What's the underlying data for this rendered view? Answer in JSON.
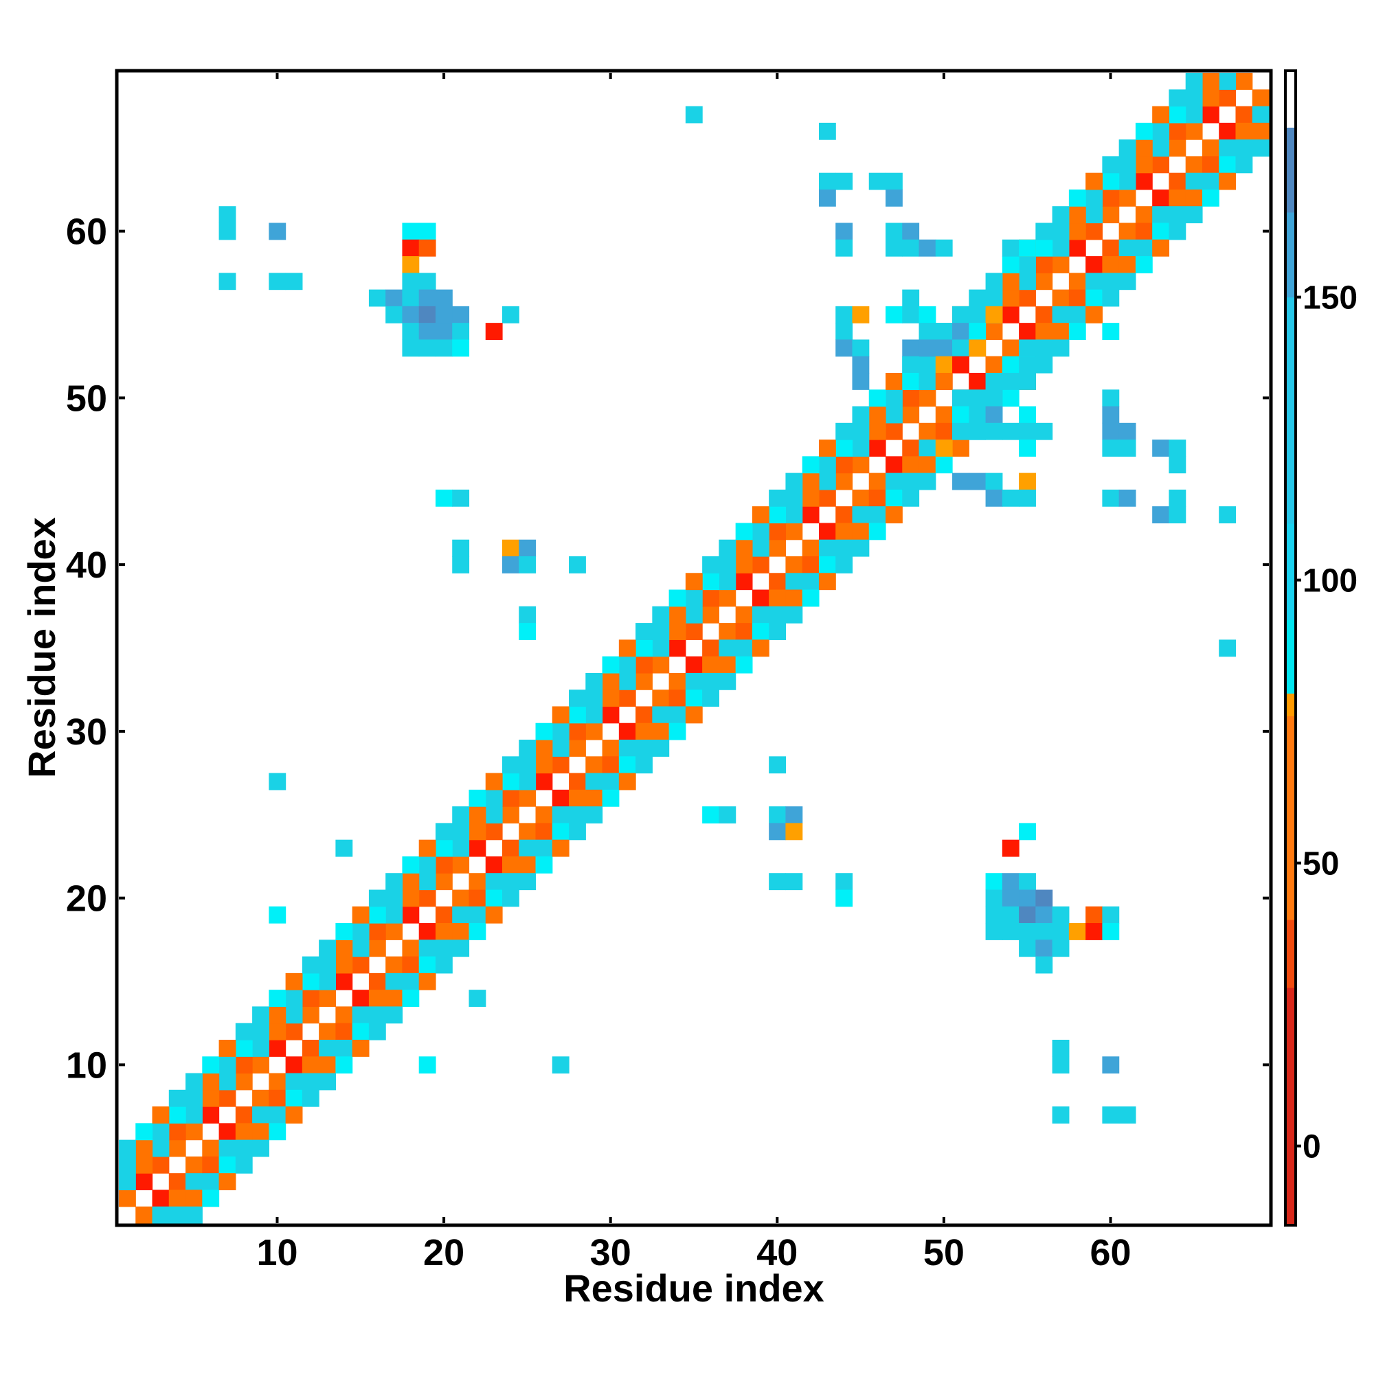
{
  "chart_data": {
    "type": "heatmap",
    "title": "",
    "xlabel": "Residue index",
    "ylabel": "Residue index",
    "xlim": [
      1,
      69
    ],
    "ylim": [
      1,
      69
    ],
    "x_ticks": [
      10,
      20,
      30,
      40,
      50,
      60
    ],
    "y_ticks": [
      10,
      20,
      30,
      40,
      50,
      60
    ],
    "x_tick_labels": [
      "10",
      "20",
      "30",
      "40",
      "50",
      "60"
    ],
    "y_tick_labels": [
      "10",
      "20",
      "30",
      "40",
      "50",
      "60"
    ],
    "colorbar": {
      "range": [
        -14,
        190
      ],
      "ticks": [
        0,
        50,
        100,
        150
      ],
      "tick_labels": [
        "0",
        "50",
        "100",
        "150"
      ],
      "bands": [
        {
          "from": -14,
          "to": 28,
          "color": "#d8281a"
        },
        {
          "from": 28,
          "to": 40,
          "color": "#f04b0f"
        },
        {
          "from": 40,
          "to": 76,
          "color": "#ff7a10"
        },
        {
          "from": 76,
          "to": 80,
          "color": "#ff9a00"
        },
        {
          "from": 80,
          "to": 93,
          "color": "#00e6f0"
        },
        {
          "from": 93,
          "to": 110,
          "color": "#1ad2f0"
        },
        {
          "from": 110,
          "to": 150,
          "color": "#26c6e8"
        },
        {
          "from": 150,
          "to": 165,
          "color": "#3fa4d8"
        },
        {
          "from": 165,
          "to": 180,
          "color": "#4f87c0"
        },
        {
          "from": 180,
          "to": 190,
          "color": "#ffffff"
        }
      ]
    },
    "palette": {
      "red": "#ff1a00",
      "orange_red": "#ff5a00",
      "orange": "#ff7300",
      "amber": "#ffa000",
      "cyan": "#00f0f8",
      "sky": "#1ad2e6",
      "blue": "#3fa4d8",
      "steel": "#4f87c0"
    },
    "diagonal_profile": [
      {
        "d": 1,
        "start": 1,
        "end": 68,
        "pattern": [
          "orange_red",
          "orange",
          "orange",
          "red"
        ]
      },
      {
        "d": 2,
        "start": 1,
        "end": 67,
        "pattern": [
          "orange",
          "sky",
          "orange_red",
          "sky"
        ]
      },
      {
        "d": 3,
        "start": 1,
        "end": 66,
        "pattern": [
          "sky",
          "orange",
          "sky",
          "cyan"
        ]
      },
      {
        "d": 4,
        "start": 1,
        "end": 65,
        "pattern": [
          "sky",
          "sky",
          "cyan",
          "orange"
        ]
      }
    ],
    "cells": [
      {
        "x": 18,
        "y": 60,
        "c": "cyan"
      },
      {
        "x": 19,
        "y": 60,
        "c": "cyan"
      },
      {
        "x": 18,
        "y": 59,
        "c": "red"
      },
      {
        "x": 19,
        "y": 59,
        "c": "orange_red"
      },
      {
        "x": 18,
        "y": 58,
        "c": "amber"
      },
      {
        "x": 18,
        "y": 57,
        "c": "sky"
      },
      {
        "x": 19,
        "y": 57,
        "c": "sky"
      },
      {
        "x": 16,
        "y": 56,
        "c": "sky"
      },
      {
        "x": 17,
        "y": 56,
        "c": "blue"
      },
      {
        "x": 18,
        "y": 56,
        "c": "sky"
      },
      {
        "x": 19,
        "y": 56,
        "c": "blue"
      },
      {
        "x": 20,
        "y": 56,
        "c": "blue"
      },
      {
        "x": 17,
        "y": 55,
        "c": "sky"
      },
      {
        "x": 18,
        "y": 55,
        "c": "blue"
      },
      {
        "x": 19,
        "y": 55,
        "c": "steel"
      },
      {
        "x": 20,
        "y": 55,
        "c": "blue"
      },
      {
        "x": 21,
        "y": 55,
        "c": "blue"
      },
      {
        "x": 18,
        "y": 54,
        "c": "sky"
      },
      {
        "x": 19,
        "y": 54,
        "c": "blue"
      },
      {
        "x": 20,
        "y": 54,
        "c": "blue"
      },
      {
        "x": 21,
        "y": 54,
        "c": "sky"
      },
      {
        "x": 18,
        "y": 53,
        "c": "sky"
      },
      {
        "x": 19,
        "y": 53,
        "c": "sky"
      },
      {
        "x": 20,
        "y": 53,
        "c": "sky"
      },
      {
        "x": 21,
        "y": 53,
        "c": "cyan"
      },
      {
        "x": 7,
        "y": 61,
        "c": "sky"
      },
      {
        "x": 7,
        "y": 60,
        "c": "sky"
      },
      {
        "x": 10,
        "y": 60,
        "c": "blue"
      },
      {
        "x": 7,
        "y": 57,
        "c": "sky"
      },
      {
        "x": 10,
        "y": 57,
        "c": "sky"
      },
      {
        "x": 11,
        "y": 57,
        "c": "sky"
      },
      {
        "x": 24,
        "y": 55,
        "c": "sky"
      },
      {
        "x": 23,
        "y": 54,
        "c": "red"
      },
      {
        "x": 35,
        "y": 67,
        "c": "sky"
      },
      {
        "x": 43,
        "y": 66,
        "c": "sky"
      },
      {
        "x": 43,
        "y": 63,
        "c": "sky"
      },
      {
        "x": 44,
        "y": 63,
        "c": "sky"
      },
      {
        "x": 43,
        "y": 62,
        "c": "blue"
      },
      {
        "x": 46,
        "y": 63,
        "c": "sky"
      },
      {
        "x": 47,
        "y": 63,
        "c": "sky"
      },
      {
        "x": 47,
        "y": 62,
        "c": "blue"
      },
      {
        "x": 44,
        "y": 60,
        "c": "blue"
      },
      {
        "x": 44,
        "y": 59,
        "c": "sky"
      },
      {
        "x": 47,
        "y": 60,
        "c": "sky"
      },
      {
        "x": 48,
        "y": 60,
        "c": "blue"
      },
      {
        "x": 47,
        "y": 59,
        "c": "sky"
      },
      {
        "x": 48,
        "y": 59,
        "c": "sky"
      },
      {
        "x": 49,
        "y": 59,
        "c": "blue"
      },
      {
        "x": 50,
        "y": 59,
        "c": "sky"
      },
      {
        "x": 54,
        "y": 59,
        "c": "sky"
      },
      {
        "x": 55,
        "y": 59,
        "c": "cyan"
      },
      {
        "x": 48,
        "y": 56,
        "c": "sky"
      },
      {
        "x": 44,
        "y": 55,
        "c": "sky"
      },
      {
        "x": 45,
        "y": 55,
        "c": "amber"
      },
      {
        "x": 47,
        "y": 55,
        "c": "cyan"
      },
      {
        "x": 48,
        "y": 55,
        "c": "sky"
      },
      {
        "x": 49,
        "y": 55,
        "c": "cyan"
      },
      {
        "x": 44,
        "y": 54,
        "c": "sky"
      },
      {
        "x": 49,
        "y": 54,
        "c": "sky"
      },
      {
        "x": 44,
        "y": 53,
        "c": "blue"
      },
      {
        "x": 45,
        "y": 53,
        "c": "sky"
      },
      {
        "x": 48,
        "y": 53,
        "c": "blue"
      },
      {
        "x": 49,
        "y": 53,
        "c": "blue"
      },
      {
        "x": 45,
        "y": 52,
        "c": "blue"
      },
      {
        "x": 48,
        "y": 52,
        "c": "sky"
      },
      {
        "x": 45,
        "y": 51,
        "c": "blue"
      },
      {
        "x": 48,
        "y": 51,
        "c": "cyan"
      },
      {
        "x": 49,
        "y": 51,
        "c": "sky"
      },
      {
        "x": 51,
        "y": 55,
        "c": "sky"
      },
      {
        "x": 52,
        "y": 55,
        "c": "sky"
      },
      {
        "x": 53,
        "y": 55,
        "c": "amber"
      },
      {
        "x": 50,
        "y": 54,
        "c": "sky"
      },
      {
        "x": 51,
        "y": 54,
        "c": "blue"
      },
      {
        "x": 52,
        "y": 54,
        "c": "cyan"
      },
      {
        "x": 50,
        "y": 53,
        "c": "blue"
      },
      {
        "x": 51,
        "y": 53,
        "c": "sky"
      },
      {
        "x": 52,
        "y": 53,
        "c": "amber"
      },
      {
        "x": 50,
        "y": 52,
        "c": "amber"
      },
      {
        "x": 51,
        "y": 52,
        "c": "red"
      },
      {
        "x": 53,
        "y": 52,
        "c": "orange"
      },
      {
        "x": 54,
        "y": 52,
        "c": "cyan"
      },
      {
        "x": 55,
        "y": 52,
        "c": "sky"
      },
      {
        "x": 50,
        "y": 51,
        "c": "orange"
      },
      {
        "x": 52,
        "y": 51,
        "c": "red"
      },
      {
        "x": 53,
        "y": 51,
        "c": "sky"
      },
      {
        "x": 54,
        "y": 51,
        "c": "sky"
      },
      {
        "x": 55,
        "y": 51,
        "c": "sky"
      },
      {
        "x": 51,
        "y": 50,
        "c": "sky"
      },
      {
        "x": 52,
        "y": 50,
        "c": "sky"
      },
      {
        "x": 53,
        "y": 50,
        "c": "sky"
      },
      {
        "x": 51,
        "y": 49,
        "c": "cyan"
      },
      {
        "x": 52,
        "y": 49,
        "c": "sky"
      },
      {
        "x": 53,
        "y": 49,
        "c": "blue"
      },
      {
        "x": 55,
        "y": 49,
        "c": "cyan"
      },
      {
        "x": 51,
        "y": 48,
        "c": "sky"
      },
      {
        "x": 52,
        "y": 48,
        "c": "sky"
      },
      {
        "x": 53,
        "y": 48,
        "c": "sky"
      },
      {
        "x": 54,
        "y": 48,
        "c": "sky"
      },
      {
        "x": 55,
        "y": 48,
        "c": "sky"
      },
      {
        "x": 56,
        "y": 48,
        "c": "sky"
      },
      {
        "x": 50,
        "y": 47,
        "c": "amber"
      },
      {
        "x": 55,
        "y": 47,
        "c": "cyan"
      },
      {
        "x": 51,
        "y": 45,
        "c": "blue"
      },
      {
        "x": 52,
        "y": 45,
        "c": "blue"
      },
      {
        "x": 53,
        "y": 45,
        "c": "sky"
      },
      {
        "x": 55,
        "y": 45,
        "c": "amber"
      },
      {
        "x": 53,
        "y": 44,
        "c": "blue"
      },
      {
        "x": 54,
        "y": 44,
        "c": "sky"
      },
      {
        "x": 55,
        "y": 44,
        "c": "sky"
      },
      {
        "x": 60,
        "y": 50,
        "c": "sky"
      },
      {
        "x": 60,
        "y": 49,
        "c": "blue"
      },
      {
        "x": 60,
        "y": 48,
        "c": "blue"
      },
      {
        "x": 61,
        "y": 48,
        "c": "blue"
      },
      {
        "x": 60,
        "y": 47,
        "c": "sky"
      },
      {
        "x": 61,
        "y": 47,
        "c": "sky"
      },
      {
        "x": 63,
        "y": 47,
        "c": "blue"
      },
      {
        "x": 64,
        "y": 47,
        "c": "sky"
      },
      {
        "x": 64,
        "y": 46,
        "c": "sky"
      },
      {
        "x": 60,
        "y": 44,
        "c": "sky"
      },
      {
        "x": 61,
        "y": 44,
        "c": "blue"
      },
      {
        "x": 64,
        "y": 44,
        "c": "sky"
      },
      {
        "x": 63,
        "y": 43,
        "c": "blue"
      },
      {
        "x": 64,
        "y": 43,
        "c": "sky"
      },
      {
        "x": 67,
        "y": 43,
        "c": "sky"
      },
      {
        "x": 67,
        "y": 35,
        "c": "sky"
      },
      {
        "x": 60,
        "y": 54,
        "c": "cyan"
      },
      {
        "x": 20,
        "y": 44,
        "c": "cyan"
      },
      {
        "x": 21,
        "y": 44,
        "c": "sky"
      },
      {
        "x": 21,
        "y": 41,
        "c": "sky"
      },
      {
        "x": 21,
        "y": 40,
        "c": "sky"
      },
      {
        "x": 24,
        "y": 41,
        "c": "amber"
      },
      {
        "x": 25,
        "y": 41,
        "c": "blue"
      },
      {
        "x": 24,
        "y": 40,
        "c": "blue"
      },
      {
        "x": 25,
        "y": 40,
        "c": "sky"
      },
      {
        "x": 28,
        "y": 40,
        "c": "sky"
      },
      {
        "x": 25,
        "y": 37,
        "c": "sky"
      },
      {
        "x": 25,
        "y": 36,
        "c": "cyan"
      },
      {
        "x": 10,
        "y": 27,
        "c": "sky"
      },
      {
        "x": 14,
        "y": 23,
        "c": "sky"
      },
      {
        "x": 10,
        "y": 19,
        "c": "cyan"
      },
      {
        "x": 22,
        "y": 14,
        "c": "sky"
      },
      {
        "x": 27,
        "y": 10,
        "c": "sky"
      },
      {
        "x": 19,
        "y": 10,
        "c": "cyan"
      },
      {
        "x": 36,
        "y": 25,
        "c": "cyan"
      },
      {
        "x": 37,
        "y": 25,
        "c": "sky"
      },
      {
        "x": 40,
        "y": 28,
        "c": "sky"
      },
      {
        "x": 40,
        "y": 25,
        "c": "sky"
      },
      {
        "x": 41,
        "y": 25,
        "c": "blue"
      },
      {
        "x": 40,
        "y": 24,
        "c": "blue"
      },
      {
        "x": 41,
        "y": 24,
        "c": "amber"
      },
      {
        "x": 40,
        "y": 21,
        "c": "sky"
      },
      {
        "x": 41,
        "y": 21,
        "c": "sky"
      },
      {
        "x": 44,
        "y": 21,
        "c": "sky"
      },
      {
        "x": 44,
        "y": 20,
        "c": "cyan"
      },
      {
        "x": 55,
        "y": 24,
        "c": "cyan"
      },
      {
        "x": 54,
        "y": 23,
        "c": "red"
      },
      {
        "x": 53,
        "y": 21,
        "c": "cyan"
      },
      {
        "x": 54,
        "y": 21,
        "c": "blue"
      },
      {
        "x": 55,
        "y": 21,
        "c": "sky"
      },
      {
        "x": 53,
        "y": 20,
        "c": "sky"
      },
      {
        "x": 54,
        "y": 20,
        "c": "blue"
      },
      {
        "x": 55,
        "y": 20,
        "c": "blue"
      },
      {
        "x": 56,
        "y": 20,
        "c": "steel"
      },
      {
        "x": 53,
        "y": 19,
        "c": "sky"
      },
      {
        "x": 54,
        "y": 19,
        "c": "sky"
      },
      {
        "x": 55,
        "y": 19,
        "c": "steel"
      },
      {
        "x": 56,
        "y": 19,
        "c": "blue"
      },
      {
        "x": 57,
        "y": 19,
        "c": "sky"
      },
      {
        "x": 59,
        "y": 19,
        "c": "orange_red"
      },
      {
        "x": 60,
        "y": 19,
        "c": "sky"
      },
      {
        "x": 53,
        "y": 18,
        "c": "sky"
      },
      {
        "x": 54,
        "y": 18,
        "c": "sky"
      },
      {
        "x": 55,
        "y": 18,
        "c": "sky"
      },
      {
        "x": 56,
        "y": 18,
        "c": "sky"
      },
      {
        "x": 57,
        "y": 18,
        "c": "sky"
      },
      {
        "x": 58,
        "y": 18,
        "c": "amber"
      },
      {
        "x": 59,
        "y": 18,
        "c": "red"
      },
      {
        "x": 60,
        "y": 18,
        "c": "cyan"
      },
      {
        "x": 55,
        "y": 17,
        "c": "sky"
      },
      {
        "x": 56,
        "y": 17,
        "c": "blue"
      },
      {
        "x": 57,
        "y": 17,
        "c": "sky"
      },
      {
        "x": 56,
        "y": 16,
        "c": "sky"
      },
      {
        "x": 57,
        "y": 11,
        "c": "sky"
      },
      {
        "x": 57,
        "y": 10,
        "c": "sky"
      },
      {
        "x": 60,
        "y": 10,
        "c": "blue"
      },
      {
        "x": 57,
        "y": 7,
        "c": "sky"
      },
      {
        "x": 60,
        "y": 7,
        "c": "sky"
      },
      {
        "x": 61,
        "y": 7,
        "c": "sky"
      }
    ]
  }
}
